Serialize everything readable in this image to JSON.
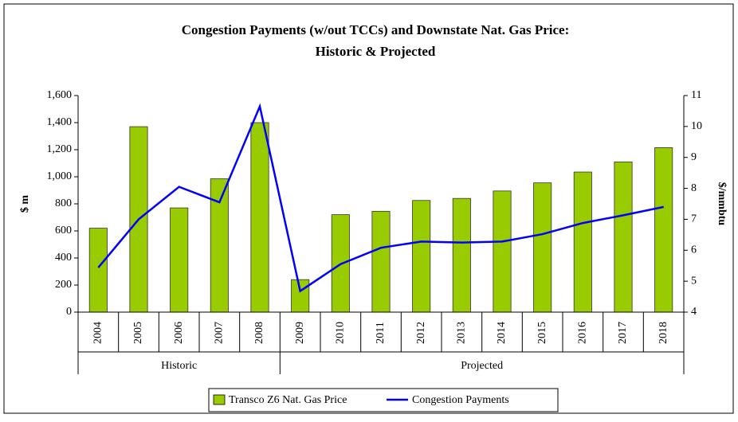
{
  "chart_data": {
    "type": "bar-line",
    "title": "Congestion Payments (w/out TCCs) and Downstate Nat. Gas Price:",
    "subtitle": "Historic & Projected",
    "y_label": "$ m",
    "y2_label": "$/mmbtu",
    "groups": [
      {
        "label": "Historic",
        "categories": [
          "2004",
          "2005",
          "2006",
          "2007",
          "2008"
        ]
      },
      {
        "label": "Projected",
        "categories": [
          "2009",
          "2010",
          "2011",
          "2012",
          "2013",
          "2014",
          "2015",
          "2016",
          "2017",
          "2018"
        ]
      }
    ],
    "series": [
      {
        "name": "Transco Z6 Nat. Gas Price",
        "type": "bar",
        "color": "#99cc00",
        "values": [
          620,
          1370,
          770,
          985,
          1400,
          240,
          720,
          745,
          825,
          840,
          895,
          955,
          1035,
          1110,
          1215
        ]
      },
      {
        "name": "Congestion Payments",
        "type": "line",
        "axis": "y2",
        "color": "#0000ff",
        "values": [
          5.44,
          7.0,
          8.05,
          7.55,
          10.65,
          4.68,
          5.55,
          6.08,
          6.28,
          6.25,
          6.28,
          6.52,
          6.88,
          7.13,
          7.4
        ]
      }
    ],
    "ylim": [
      0,
      1600
    ],
    "yticks": [
      0,
      200,
      400,
      600,
      800,
      {
        "value": 1000,
        "label": "1,000"
      },
      {
        "value": 1200,
        "label": "1,200"
      },
      {
        "value": 1400,
        "label": "1,400"
      },
      {
        "value": 1600,
        "label": "1,600"
      }
    ],
    "y2lim": [
      4,
      11
    ],
    "y2ticks": [
      4,
      5,
      6,
      7,
      8,
      9,
      10,
      11
    ],
    "legend": "bottom"
  }
}
